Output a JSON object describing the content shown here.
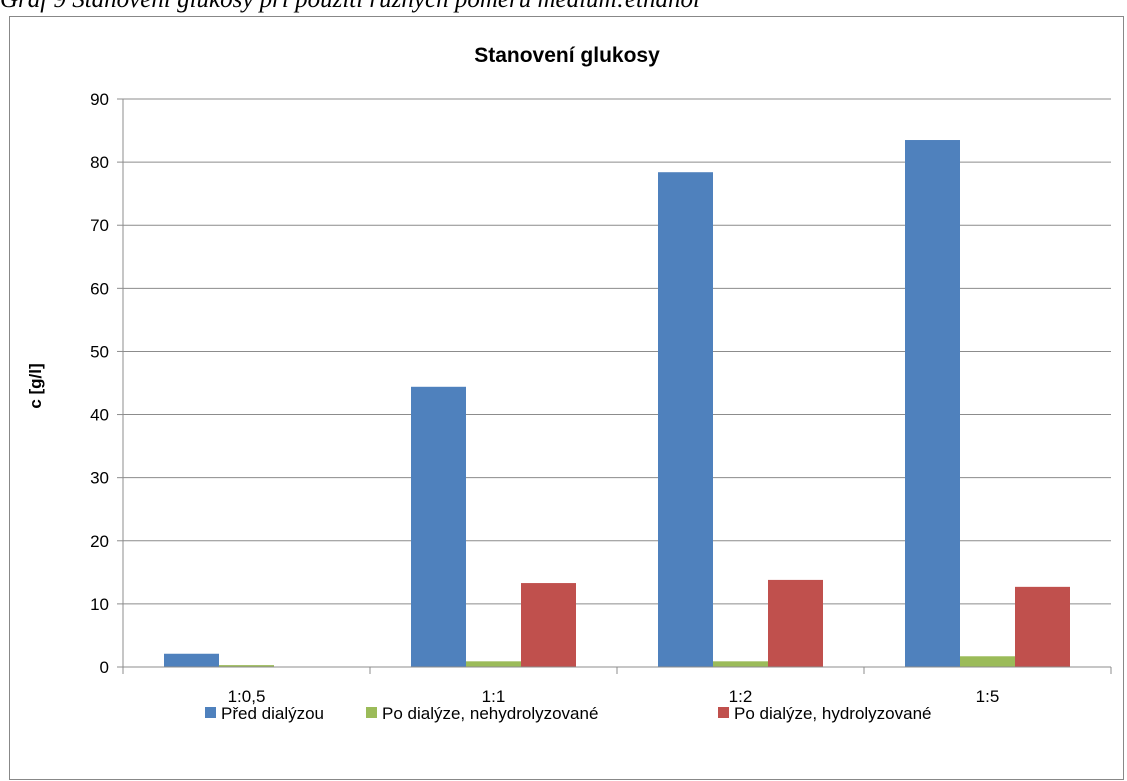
{
  "caption": "Graf 9 Stanovení glukosy při použití různých poměrů medium:ethanol",
  "chart_data": {
    "type": "bar",
    "title": "Stanovení glukosy",
    "xlabel": "",
    "ylabel": "c [g/l]",
    "ylim": [
      0,
      90
    ],
    "yticks": [
      "0",
      "10",
      "20",
      "30",
      "40",
      "50",
      "60",
      "70",
      "80",
      "90"
    ],
    "grid": true,
    "legend_position": "bottom",
    "categories": [
      "1:0,5",
      "1:1",
      "1:2",
      "1:5"
    ],
    "series": [
      {
        "name": "Před dialýzou",
        "color": "#4F81BD",
        "values": [
          2.1,
          44.4,
          78.4,
          83.5
        ]
      },
      {
        "name": "Po dialýze, nehydrolyzované",
        "color": "#9BBB59",
        "values": [
          0.3,
          0.9,
          0.9,
          1.7
        ]
      },
      {
        "name": "Po dialýze, hydrolyzované",
        "color": "#C0504D",
        "values": [
          0,
          13.3,
          13.8,
          12.7
        ]
      }
    ]
  }
}
